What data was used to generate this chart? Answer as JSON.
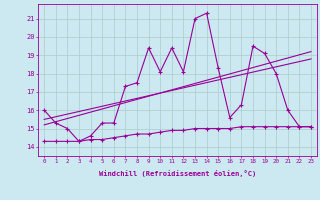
{
  "bg_color": "#cce8f0",
  "line_color": "#990099",
  "grid_color": "#aacccc",
  "xlabel": "Windchill (Refroidissement éolien,°C)",
  "ylabel_ticks": [
    14,
    15,
    16,
    17,
    18,
    19,
    20,
    21
  ],
  "xlim": [
    -0.5,
    23.5
  ],
  "ylim": [
    13.5,
    21.8
  ],
  "xtick_labels": [
    "0",
    "1",
    "2",
    "3",
    "4",
    "5",
    "6",
    "7",
    "8",
    "9",
    "10",
    "11",
    "12",
    "13",
    "14",
    "15",
    "16",
    "17",
    "18",
    "19",
    "20",
    "21",
    "22",
    "23"
  ],
  "series1_x": [
    0,
    1,
    2,
    3,
    4,
    5,
    6,
    7,
    8,
    9,
    10,
    11,
    12,
    13,
    14,
    15,
    16,
    17,
    18,
    19,
    20,
    21,
    22,
    23
  ],
  "series1_y": [
    16.0,
    15.3,
    15.0,
    14.3,
    14.6,
    15.3,
    15.3,
    17.3,
    17.5,
    19.4,
    18.1,
    19.4,
    18.1,
    21.0,
    21.3,
    18.3,
    15.6,
    16.3,
    19.5,
    19.1,
    18.0,
    16.0,
    15.1,
    15.1
  ],
  "series2_x": [
    0,
    1,
    2,
    3,
    4,
    5,
    6,
    7,
    8,
    9,
    10,
    11,
    12,
    13,
    14,
    15,
    16,
    17,
    18,
    19,
    20,
    21,
    22,
    23
  ],
  "series2_y": [
    14.3,
    14.3,
    14.3,
    14.3,
    14.4,
    14.4,
    14.5,
    14.6,
    14.7,
    14.7,
    14.8,
    14.9,
    14.9,
    15.0,
    15.0,
    15.0,
    15.0,
    15.1,
    15.1,
    15.1,
    15.1,
    15.1,
    15.1,
    15.1
  ],
  "series3_x": [
    0,
    23
  ],
  "series3_y": [
    15.5,
    18.8
  ],
  "series4_x": [
    0,
    23
  ],
  "series4_y": [
    15.2,
    19.2
  ]
}
